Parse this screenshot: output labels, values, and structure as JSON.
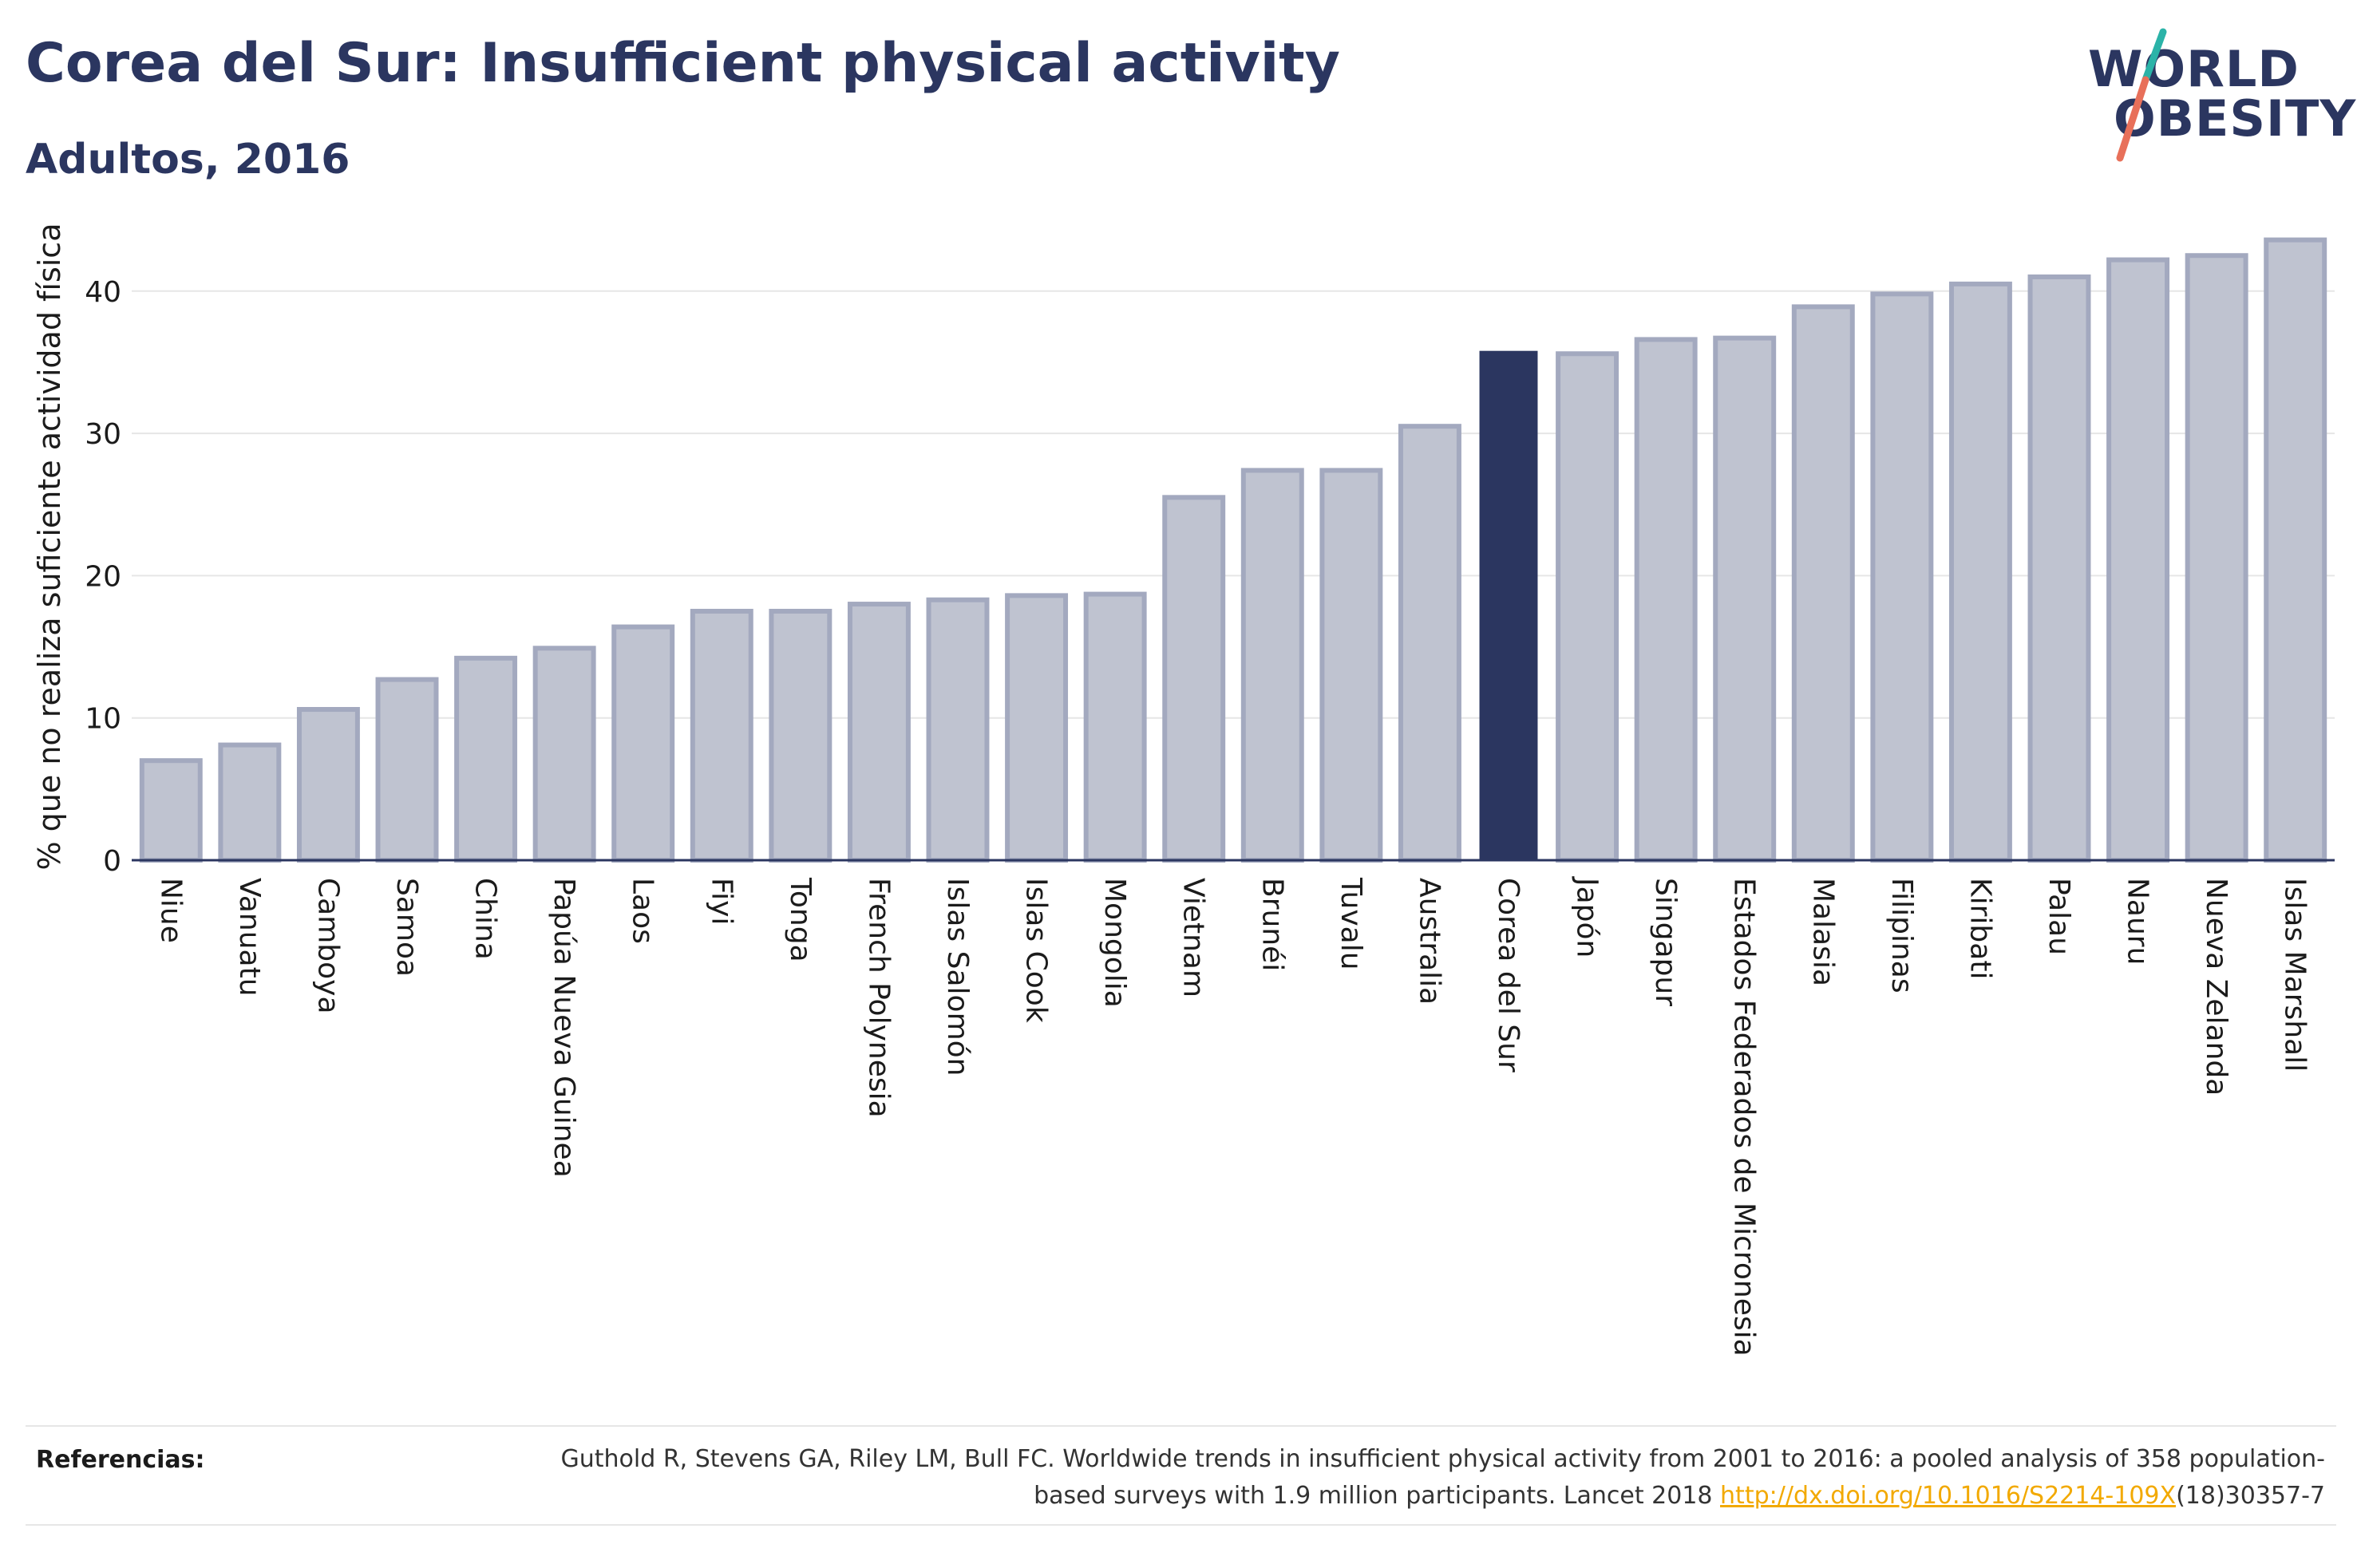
{
  "header": {
    "title": "Corea del Sur: Insufficient physical activity",
    "subtitle": "Adultos, 2016"
  },
  "logo": {
    "line1": "WORLD",
    "line2": "OBESITY",
    "colors": {
      "text": "#2b3660",
      "slash_top": "#2bb3a8",
      "slash_bottom": "#e8705a"
    }
  },
  "colors": {
    "bar_default": "#bfc3d0",
    "bar_border": "#a3a9bf",
    "bar_highlight": "#2b3660",
    "grid": "#e6e6e6",
    "axis": "#2b3660"
  },
  "chart_data": {
    "type": "bar",
    "title": "Corea del Sur: Insufficient physical activity",
    "subtitle": "Adultos, 2016",
    "xlabel": "",
    "ylabel": "% que no realiza suficiente actividad física",
    "ylim": [
      0,
      47
    ],
    "yticks": [
      0,
      10,
      20,
      30,
      40
    ],
    "grid": true,
    "highlight": "Corea del Sur",
    "categories": [
      "Niue",
      "Vanuatu",
      "Camboya",
      "Samoa",
      "China",
      "Papúa Nueva Guinea",
      "Laos",
      "Fiyi",
      "Tonga",
      "French Polynesia",
      "Islas Salomón",
      "Islas Cook",
      "Mongolia",
      "Vietnam",
      "Brunéi",
      "Tuvalu",
      "Australia",
      "Corea del Sur",
      "Japón",
      "Singapur",
      "Estados Federados de Micronesia",
      "Malasia",
      "Filipinas",
      "Kiribati",
      "Palau",
      "Nauru",
      "Nueva Zelanda",
      "Islas Marshall"
    ],
    "values": [
      7.0,
      8.1,
      10.6,
      12.7,
      14.2,
      14.9,
      16.4,
      17.5,
      17.5,
      18.0,
      18.3,
      18.6,
      18.7,
      25.5,
      27.4,
      27.4,
      30.5,
      35.8,
      35.6,
      36.6,
      36.7,
      38.9,
      39.8,
      40.5,
      41.0,
      42.2,
      42.5,
      43.6
    ]
  },
  "footer": {
    "label": "Referencias:",
    "text_before": "Guthold R, Stevens GA, Riley LM, Bull FC. Worldwide trends in insufficient physical activity from 2001 to 2016: a pooled analysis of 358 population-based surveys with 1.9 million participants. Lancet 2018 ",
    "link": "http://dx.doi.org/10.1016/S2214-109X",
    "text_after": "(18)30357-7"
  }
}
